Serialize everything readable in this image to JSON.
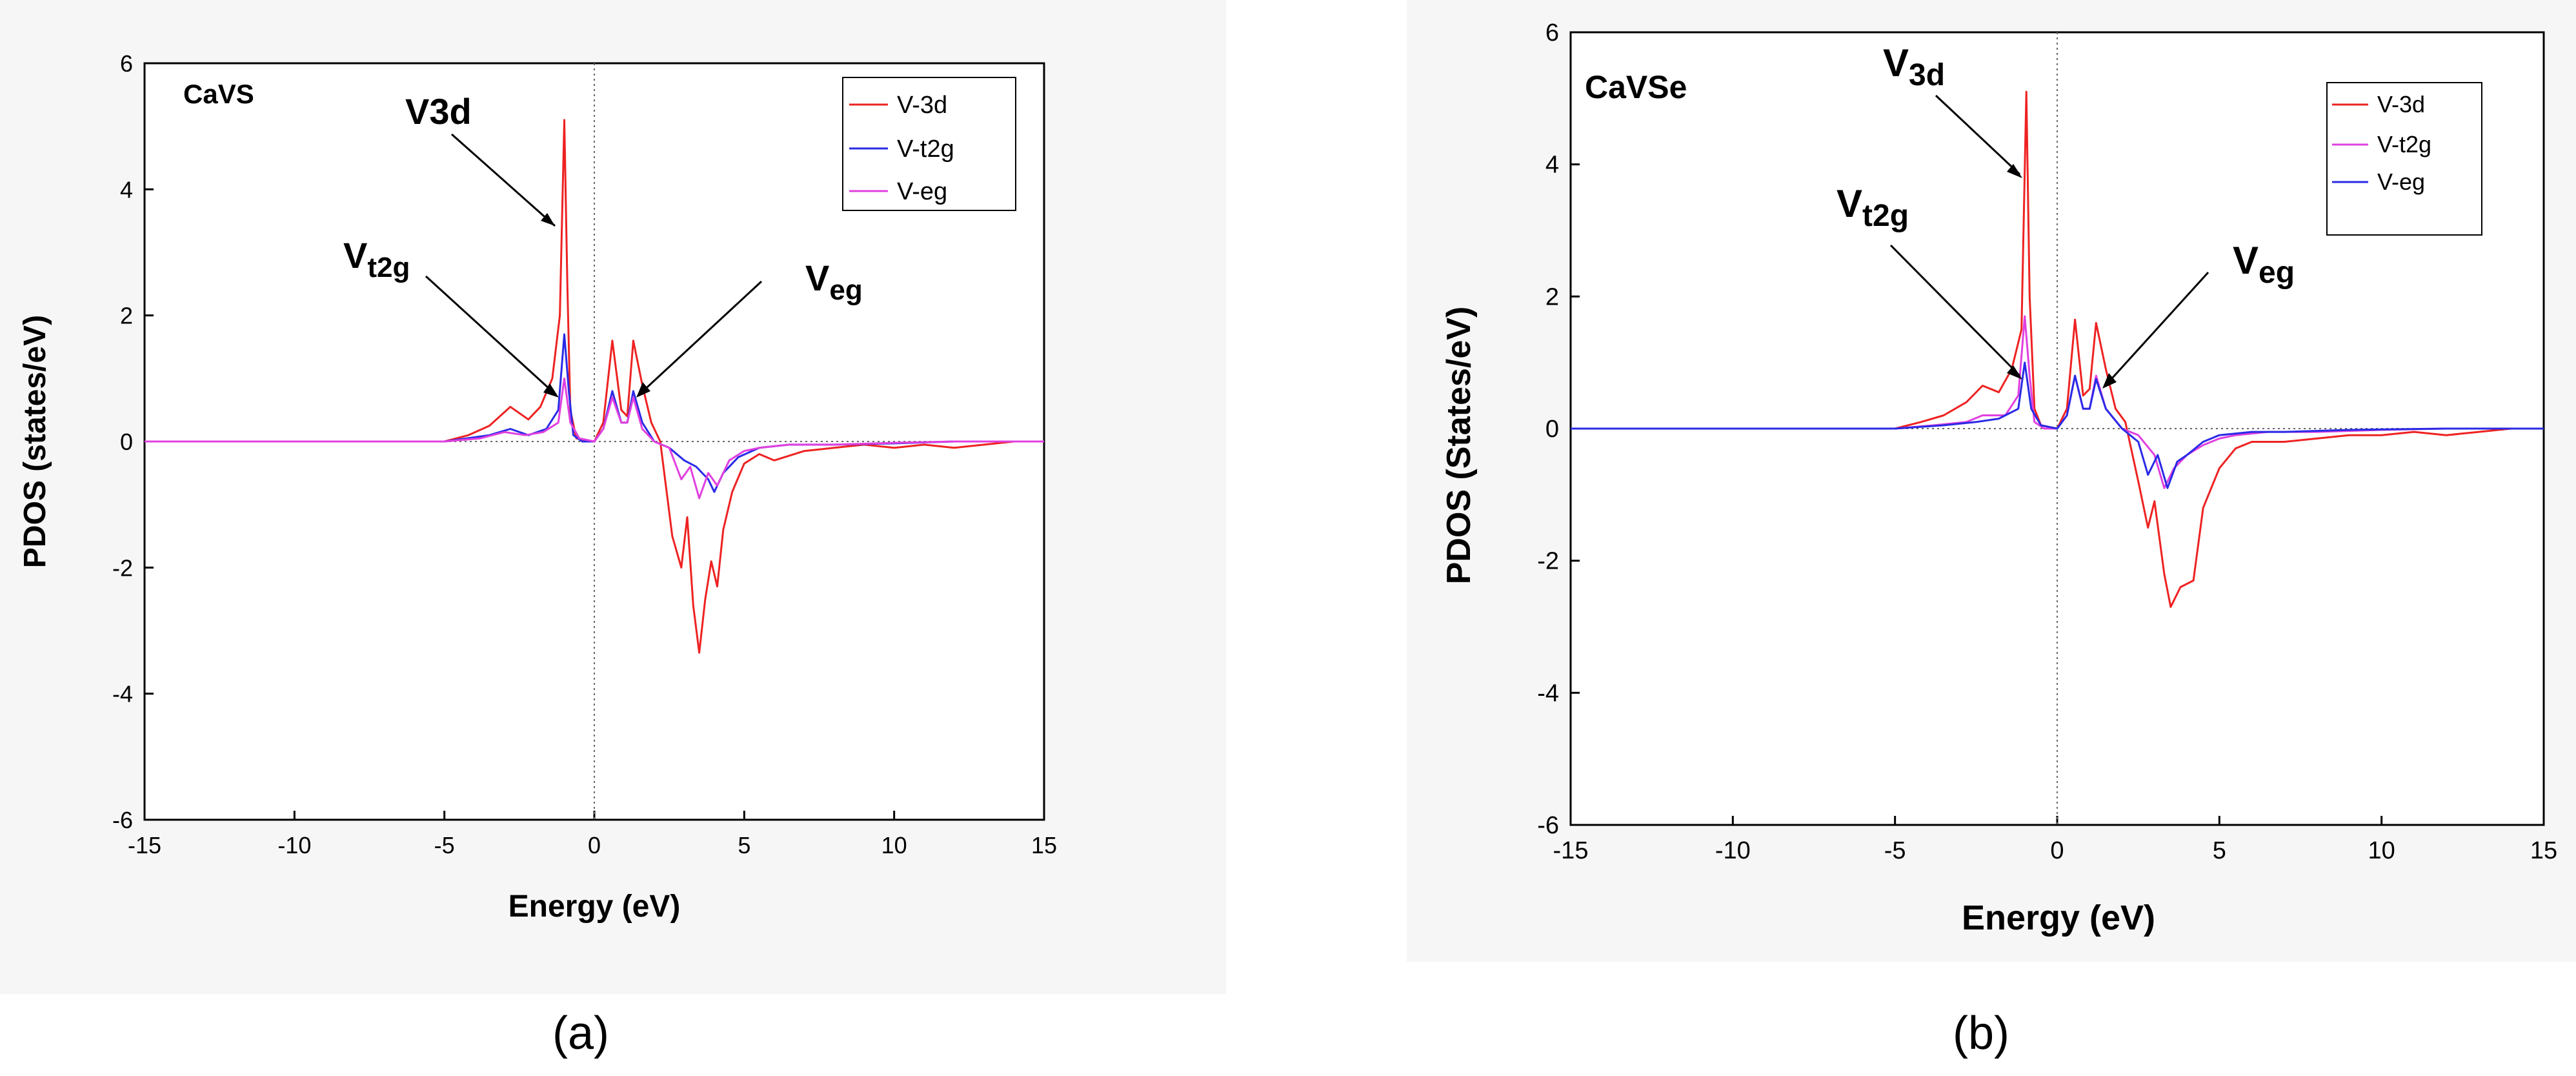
{
  "colors": {
    "v3d": "#ee2222",
    "t2g_a": "#2a2ae6",
    "eg_a": "#e040e0",
    "t2g_b": "#e040e0",
    "eg_b": "#2a2ae6",
    "axis": "#000000"
  },
  "chart_data": [
    {
      "type": "line",
      "panel_label": "(a)",
      "compound": "CaVS",
      "xlabel": "Energy (eV)",
      "ylabel": "PDOS (states/eV)",
      "xlim": [
        -15,
        15
      ],
      "ylim": [
        -6,
        6
      ],
      "xticks": [
        "-15",
        "-10",
        "-5",
        "0",
        "5",
        "10",
        "15"
      ],
      "yticks": [
        "-6",
        "-4",
        "-2",
        "0",
        "2",
        "4",
        "6"
      ],
      "annotations": {
        "v3d": "V3d",
        "t2g_main": "V",
        "t2g_sub": "t2g",
        "eg_main": "V",
        "eg_sub": "eg"
      },
      "legend": [
        "V-3d",
        "V-t2g",
        "V-eg"
      ],
      "series": [
        {
          "name": "V-3d",
          "color_key": "v3d",
          "x": [
            -15,
            -12,
            -5,
            -4.2,
            -3.5,
            -2.8,
            -2.2,
            -1.8,
            -1.4,
            -1.15,
            -1.0,
            -0.9,
            -0.8,
            -0.6,
            0.0,
            0.3,
            0.6,
            0.9,
            1.1,
            1.3,
            1.6,
            1.9,
            2.2,
            2.6,
            2.9,
            3.1,
            3.3,
            3.5,
            3.7,
            3.9,
            4.1,
            4.3,
            4.6,
            5.0,
            5.5,
            6.0,
            7,
            8,
            9,
            10,
            11,
            12,
            13,
            14,
            15
          ],
          "y": [
            0,
            0,
            0,
            0.1,
            0.25,
            0.55,
            0.35,
            0.55,
            1.0,
            2.0,
            5.1,
            2.5,
            0.5,
            0.05,
            0.0,
            0.3,
            1.6,
            0.5,
            0.4,
            1.6,
            0.9,
            0.3,
            0.0,
            -1.5,
            -2.0,
            -1.2,
            -2.6,
            -3.35,
            -2.5,
            -1.9,
            -2.3,
            -1.4,
            -0.8,
            -0.35,
            -0.2,
            -0.3,
            -0.15,
            -0.1,
            -0.05,
            -0.1,
            -0.05,
            -0.1,
            -0.05,
            0.0,
            0.0
          ]
        },
        {
          "name": "V-t2g",
          "color_key": "t2g_a",
          "x": [
            -15,
            -5,
            -3.5,
            -2.8,
            -2.2,
            -1.6,
            -1.2,
            -1.0,
            -0.85,
            -0.7,
            -0.4,
            0,
            0.3,
            0.6,
            0.9,
            1.1,
            1.3,
            1.6,
            2.0,
            2.5,
            3.0,
            3.4,
            3.8,
            4.0,
            4.3,
            4.8,
            5.5,
            6.5,
            8,
            10,
            12,
            15
          ],
          "y": [
            0,
            0,
            0.1,
            0.2,
            0.1,
            0.2,
            0.5,
            1.7,
            0.8,
            0.1,
            0.0,
            0.0,
            0.2,
            0.8,
            0.3,
            0.3,
            0.8,
            0.3,
            0.0,
            -0.1,
            -0.3,
            -0.4,
            -0.6,
            -0.8,
            -0.5,
            -0.25,
            -0.1,
            -0.05,
            -0.05,
            -0.03,
            0.0,
            0.0
          ]
        },
        {
          "name": "V-eg",
          "color_key": "eg_a",
          "x": [
            -15,
            -5,
            -3.8,
            -3.0,
            -2.3,
            -1.7,
            -1.2,
            -1.0,
            -0.8,
            -0.5,
            0,
            0.3,
            0.6,
            0.9,
            1.1,
            1.3,
            1.6,
            2.0,
            2.5,
            2.9,
            3.2,
            3.5,
            3.8,
            4.1,
            4.5,
            5.0,
            5.5,
            6.5,
            8,
            10,
            12,
            15
          ],
          "y": [
            0,
            0,
            0.05,
            0.15,
            0.1,
            0.15,
            0.3,
            1.0,
            0.3,
            0.05,
            0.0,
            0.2,
            0.7,
            0.3,
            0.3,
            0.7,
            0.2,
            0.0,
            -0.1,
            -0.6,
            -0.4,
            -0.9,
            -0.5,
            -0.7,
            -0.3,
            -0.15,
            -0.1,
            -0.05,
            -0.05,
            -0.02,
            0.0,
            0.0
          ]
        }
      ]
    },
    {
      "type": "line",
      "panel_label": "(b)",
      "compound": "CaVSe",
      "xlabel": "Energy (eV)",
      "ylabel": "PDOS (States/eV)",
      "xlim": [
        -15,
        15
      ],
      "ylim": [
        -6,
        6
      ],
      "xticks": [
        "-15",
        "-10",
        "-5",
        "0",
        "5",
        "10",
        "15"
      ],
      "yticks": [
        "-6",
        "-4",
        "-2",
        "0",
        "2",
        "4",
        "6"
      ],
      "annotations": {
        "v3d_main": "V",
        "v3d_sub": "3d",
        "t2g_main": "V",
        "t2g_sub": "t2g",
        "eg_main": "V",
        "eg_sub": "eg"
      },
      "legend": [
        "V-3d",
        "V-t2g",
        "V-eg"
      ],
      "series": [
        {
          "name": "V-3d",
          "color_key": "v3d",
          "x": [
            -15,
            -11.5,
            -5,
            -4.2,
            -3.5,
            -2.8,
            -2.3,
            -1.8,
            -1.4,
            -1.1,
            -0.95,
            -0.85,
            -0.7,
            -0.5,
            0,
            0.3,
            0.55,
            0.8,
            1.0,
            1.2,
            1.5,
            1.8,
            2.1,
            2.5,
            2.8,
            3.0,
            3.3,
            3.5,
            3.8,
            4.2,
            4.5,
            5.0,
            5.5,
            6.0,
            7,
            8,
            9,
            10,
            11,
            12,
            13,
            14,
            15
          ],
          "y": [
            0,
            0,
            0,
            0.1,
            0.2,
            0.4,
            0.65,
            0.55,
            0.9,
            1.5,
            5.1,
            2.0,
            0.3,
            0.05,
            0.0,
            0.3,
            1.65,
            0.5,
            0.6,
            1.6,
            0.9,
            0.3,
            0.1,
            -0.8,
            -1.5,
            -1.1,
            -2.2,
            -2.7,
            -2.4,
            -2.3,
            -1.2,
            -0.6,
            -0.3,
            -0.2,
            -0.2,
            -0.15,
            -0.1,
            -0.1,
            -0.05,
            -0.1,
            -0.05,
            0.0,
            0.0
          ]
        },
        {
          "name": "V-t2g",
          "color_key": "t2g_b",
          "x": [
            -15,
            -5,
            -3.8,
            -2.8,
            -2.3,
            -1.6,
            -1.2,
            -1.0,
            -0.85,
            -0.7,
            -0.4,
            0,
            0.3,
            0.55,
            0.8,
            1.0,
            1.2,
            1.5,
            2.0,
            2.5,
            3.0,
            3.3,
            3.6,
            4.0,
            4.5,
            5.0,
            5.5,
            6.5,
            8,
            10,
            12,
            15
          ],
          "y": [
            0,
            0,
            0.05,
            0.1,
            0.2,
            0.2,
            0.5,
            1.7,
            0.8,
            0.1,
            0.0,
            0.0,
            0.2,
            0.8,
            0.3,
            0.3,
            0.8,
            0.3,
            0.0,
            -0.1,
            -0.4,
            -0.9,
            -0.6,
            -0.4,
            -0.25,
            -0.15,
            -0.1,
            -0.05,
            -0.05,
            -0.02,
            0.0,
            0.0
          ]
        },
        {
          "name": "V-eg",
          "color_key": "eg_b",
          "x": [
            -15,
            -11.5,
            -5,
            -3.5,
            -2.5,
            -1.8,
            -1.2,
            -1.0,
            -0.8,
            -0.5,
            0,
            0.3,
            0.55,
            0.8,
            1.0,
            1.2,
            1.5,
            2.0,
            2.5,
            2.8,
            3.1,
            3.4,
            3.7,
            4.0,
            4.5,
            5.0,
            6.0,
            7,
            9,
            12,
            15
          ],
          "y": [
            0,
            0,
            0,
            0.05,
            0.1,
            0.15,
            0.3,
            1.0,
            0.3,
            0.05,
            0.0,
            0.2,
            0.8,
            0.3,
            0.3,
            0.75,
            0.3,
            0.0,
            -0.2,
            -0.7,
            -0.4,
            -0.9,
            -0.5,
            -0.4,
            -0.2,
            -0.1,
            -0.05,
            -0.05,
            -0.02,
            0.0,
            0.0
          ]
        }
      ]
    }
  ]
}
